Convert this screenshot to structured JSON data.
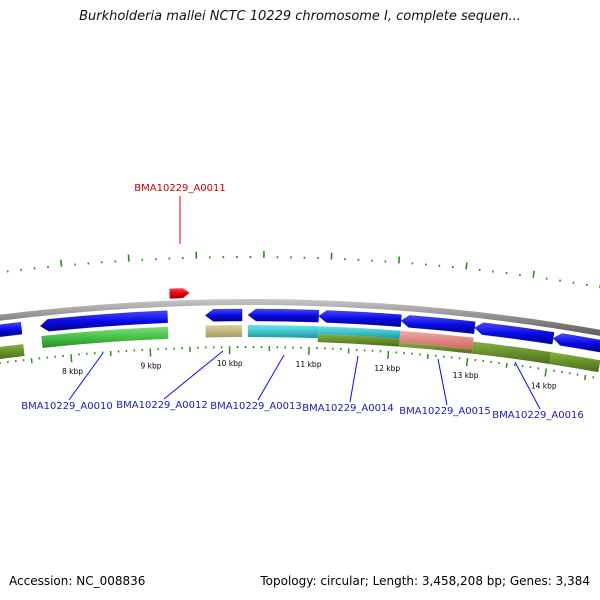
{
  "title": "Burkholderia mallei NCTC 10229 chromosome I, complete sequen...",
  "footer": {
    "accession": "Accession: NC_008836",
    "stats": "Topology: circular; Length: 3,458,208 bp; Genes: 3,384"
  },
  "colors": {
    "gene_forward": "#e8000b",
    "gene_reverse": "#0a0ae6",
    "backbone": "#8c8c8c",
    "ticks": "#2e8b1e",
    "label_reverse": "#1a1ab0",
    "label_forward": "#cc0000",
    "cds_green": "#47c047",
    "cds_tan": "#bdb77a",
    "cds_cyan": "#25c8d2",
    "cds_salmon": "#e8847f",
    "cds_olive": "#5f8c23"
  },
  "scale_labels": [
    "8 kbp",
    "9 kbp",
    "10 kbp",
    "11 kbp",
    "12 kbp",
    "13 kbp",
    "14 kbp"
  ],
  "genes": {
    "forward": [
      {
        "id": "BMA10229_A0011",
        "label": "BMA10229_A0011"
      }
    ],
    "reverse": [
      {
        "id": "BMA10229_A0010",
        "label": "BMA10229_A0010"
      },
      {
        "id": "BMA10229_A0012",
        "label": "BMA10229_A0012"
      },
      {
        "id": "BMA10229_A0013",
        "label": "BMA10229_A0013"
      },
      {
        "id": "BMA10229_A0014",
        "label": "BMA10229_A0014"
      },
      {
        "id": "BMA10229_A0015",
        "label": "BMA10229_A0015"
      },
      {
        "id": "BMA10229_A0016",
        "label": "BMA10229_A0016"
      }
    ]
  }
}
